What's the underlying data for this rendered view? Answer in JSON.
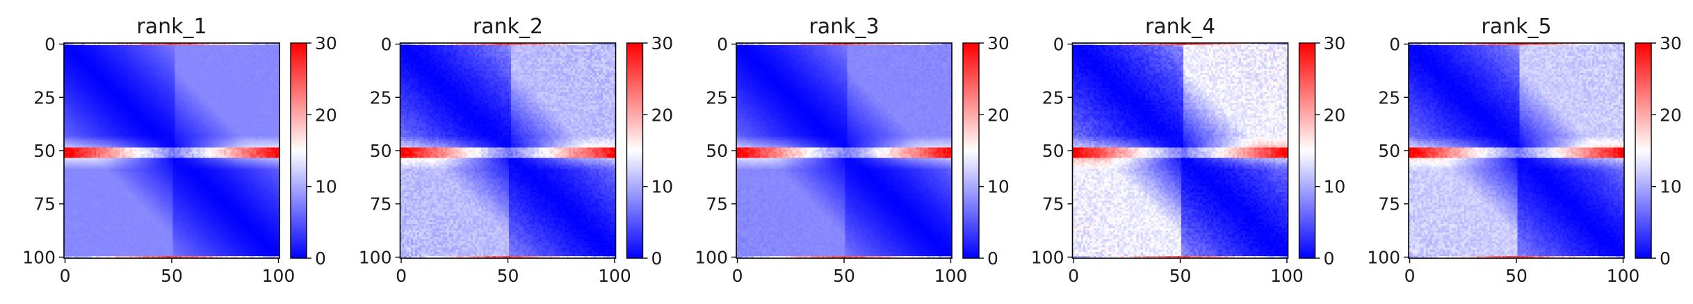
{
  "chart_data": [
    {
      "type": "heatmap",
      "title": "rank_1",
      "xticks": [
        0,
        50,
        100
      ],
      "yticks": [
        0,
        25,
        50,
        75,
        100
      ],
      "xlim": [
        0,
        101
      ],
      "ylim": [
        101,
        0
      ],
      "colorbar": {
        "ticks": [
          0,
          10,
          20,
          30
        ],
        "range": [
          0,
          30
        ],
        "colors": [
          "#0000ff",
          "#ffffff",
          "#ff0000"
        ]
      },
      "pattern": {
        "mask_row": 51,
        "mask_row_value": 28,
        "edge_value": 26,
        "far_value": 8,
        "upper_right_value": 8,
        "lower_left_value": 8,
        "texture": 0.3
      }
    },
    {
      "type": "heatmap",
      "title": "rank_2",
      "xticks": [
        0,
        50,
        100
      ],
      "yticks": [
        0,
        25,
        50,
        75,
        100
      ],
      "xlim": [
        0,
        101
      ],
      "ylim": [
        101,
        0
      ],
      "colorbar": {
        "ticks": [
          0,
          10,
          20,
          30
        ],
        "range": [
          0,
          30
        ],
        "colors": [
          "#0000ff",
          "#ffffff",
          "#ff0000"
        ]
      },
      "pattern": {
        "mask_row": 51,
        "mask_row_value": 28,
        "edge_value": 26,
        "far_value": 9,
        "upper_right_value": 11,
        "lower_left_value": 11,
        "texture": 1.6
      }
    },
    {
      "type": "heatmap",
      "title": "rank_3",
      "xticks": [
        0,
        50,
        100
      ],
      "yticks": [
        0,
        25,
        50,
        75,
        100
      ],
      "xlim": [
        0,
        101
      ],
      "ylim": [
        101,
        0
      ],
      "colorbar": {
        "ticks": [
          0,
          10,
          20,
          30
        ],
        "range": [
          0,
          30
        ],
        "colors": [
          "#0000ff",
          "#ffffff",
          "#ff0000"
        ]
      },
      "pattern": {
        "mask_row": 51,
        "mask_row_value": 28,
        "edge_value": 26,
        "far_value": 8,
        "upper_right_value": 8,
        "lower_left_value": 8,
        "texture": 0.5
      }
    },
    {
      "type": "heatmap",
      "title": "rank_4",
      "xticks": [
        0,
        50,
        100
      ],
      "yticks": [
        0,
        25,
        50,
        75,
        100
      ],
      "xlim": [
        0,
        101
      ],
      "ylim": [
        101,
        0
      ],
      "colorbar": {
        "ticks": [
          0,
          10,
          20,
          30
        ],
        "range": [
          0,
          30
        ],
        "colors": [
          "#0000ff",
          "#ffffff",
          "#ff0000"
        ]
      },
      "pattern": {
        "mask_row": 51,
        "mask_row_value": 28,
        "edge_value": 26,
        "far_value": 9,
        "upper_right_value": 14,
        "lower_left_value": 14,
        "texture": 2.2
      }
    },
    {
      "type": "heatmap",
      "title": "rank_5",
      "xticks": [
        0,
        50,
        100
      ],
      "yticks": [
        0,
        25,
        50,
        75,
        100
      ],
      "xlim": [
        0,
        101
      ],
      "ylim": [
        101,
        0
      ],
      "colorbar": {
        "ticks": [
          0,
          10,
          20,
          30
        ],
        "range": [
          0,
          30
        ],
        "colors": [
          "#0000ff",
          "#ffffff",
          "#ff0000"
        ]
      },
      "pattern": {
        "mask_row": 51,
        "mask_row_value": 28,
        "edge_value": 26,
        "far_value": 9,
        "upper_right_value": 12,
        "lower_left_value": 12,
        "texture": 1.6
      }
    }
  ]
}
